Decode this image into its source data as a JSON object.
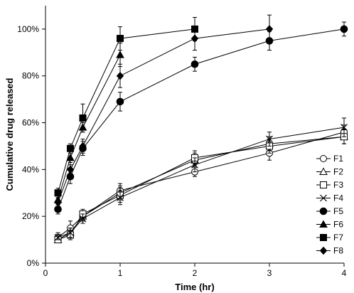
{
  "chart_data": {
    "type": "line",
    "title": "",
    "xlabel": "Time (hr)",
    "ylabel": "Cumulative drug released",
    "xlim": [
      0,
      4
    ],
    "ylim": [
      0,
      110
    ],
    "x_ticks": [
      0,
      1,
      2,
      3,
      4
    ],
    "x_tick_labels": [
      "0",
      "1",
      "2",
      "3",
      "4"
    ],
    "y_ticks": [
      0,
      20,
      40,
      60,
      80,
      100
    ],
    "y_tick_labels": [
      "0%",
      "20%",
      "40%",
      "60%",
      "80%",
      "100%"
    ],
    "grid": false,
    "legend_position": "right",
    "x": [
      0.167,
      0.333,
      0.5,
      1,
      2,
      3,
      4
    ],
    "series": [
      {
        "name": "F1",
        "marker": "open-circle",
        "color": "#000000",
        "x": [
          0.167,
          0.333,
          0.5,
          1,
          2,
          3,
          4
        ],
        "values": [
          11,
          15,
          20,
          31,
          39,
          47,
          56
        ],
        "errors": [
          2,
          3,
          2,
          3,
          2,
          3,
          3
        ]
      },
      {
        "name": "F2",
        "marker": "open-triangle",
        "color": "#000000",
        "x": [
          0.167,
          0.333,
          0.5,
          1,
          2,
          3,
          4
        ],
        "values": [
          10,
          13,
          20,
          30,
          44,
          51,
          54
        ],
        "errors": [
          1,
          2,
          2,
          3,
          3,
          3,
          3
        ]
      },
      {
        "name": "F3",
        "marker": "open-square",
        "color": "#000000",
        "x": [
          0.167,
          0.333,
          0.5,
          1,
          2,
          3,
          4
        ],
        "values": [
          10,
          12,
          21,
          29,
          45,
          50,
          54
        ],
        "errors": [
          1,
          2,
          2,
          3,
          3,
          3,
          3
        ]
      },
      {
        "name": "F4",
        "marker": "x",
        "color": "#000000",
        "x": [
          0.167,
          0.333,
          0.5,
          1,
          2,
          3,
          4
        ],
        "values": [
          11,
          13,
          19,
          28,
          42,
          53,
          58
        ],
        "errors": [
          1,
          2,
          2,
          3,
          3,
          3,
          4
        ]
      },
      {
        "name": "F5",
        "marker": "filled-circle",
        "color": "#000000",
        "x": [
          0.167,
          0.333,
          0.5,
          1,
          2,
          3,
          4
        ],
        "values": [
          23,
          37,
          49,
          69,
          85,
          95,
          100
        ],
        "errors": [
          2,
          3,
          3,
          4,
          3,
          4,
          3
        ]
      },
      {
        "name": "F6",
        "marker": "filled-triangle",
        "color": "#000000",
        "x": [
          0.167,
          0.333,
          0.5,
          1
        ],
        "values": [
          27,
          45,
          58,
          89
        ],
        "errors": [
          2,
          3,
          2,
          5
        ]
      },
      {
        "name": "F7",
        "marker": "filled-square",
        "color": "#000000",
        "x": [
          0.167,
          0.333,
          0.5,
          1,
          2
        ],
        "values": [
          30,
          49,
          62,
          96,
          100
        ],
        "errors": [
          2,
          2,
          6,
          5,
          5
        ]
      },
      {
        "name": "F8",
        "marker": "filled-diamond",
        "color": "#000000",
        "x": [
          0.167,
          0.333,
          0.5,
          1,
          2,
          3
        ],
        "values": [
          26,
          40,
          50,
          80,
          96,
          100
        ],
        "errors": [
          2,
          3,
          3,
          5,
          5,
          6
        ]
      }
    ]
  }
}
